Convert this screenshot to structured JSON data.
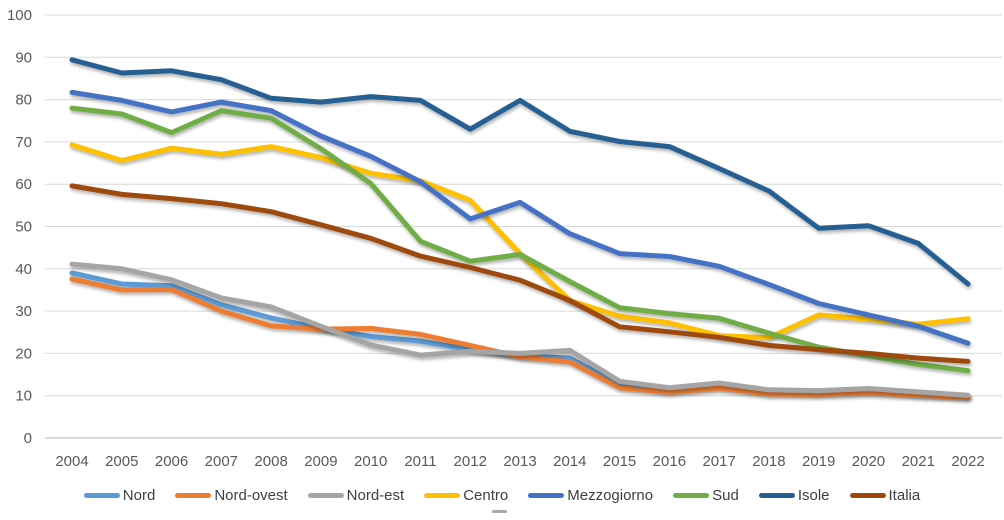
{
  "chart_data": {
    "type": "line",
    "title": "",
    "xlabel": "",
    "ylabel": "",
    "ylim": [
      0,
      100
    ],
    "yticks": [
      0,
      10,
      20,
      30,
      40,
      50,
      60,
      70,
      80,
      90,
      100
    ],
    "grid": true,
    "legend_position": "bottom",
    "categories": [
      "2004",
      "2005",
      "2006",
      "2007",
      "2008",
      "2009",
      "2010",
      "2011",
      "2012",
      "2013",
      "2014",
      "2015",
      "2016",
      "2017",
      "2018",
      "2019",
      "2020",
      "2021",
      "2022"
    ],
    "series": [
      {
        "name": "Nord",
        "color": "#5B9BD5",
        "values": [
          39.0,
          36.4,
          36.0,
          31.5,
          28.4,
          25.9,
          24.0,
          22.9,
          20.9,
          19.5,
          18.9,
          12.6,
          11.3,
          12.4,
          10.9,
          10.7,
          11.2,
          10.4,
          9.9
        ]
      },
      {
        "name": "Nord-ovest",
        "color": "#ED7D31",
        "values": [
          37.6,
          35.0,
          35.1,
          30.0,
          26.5,
          25.7,
          25.9,
          24.5,
          21.9,
          19.2,
          18.0,
          11.9,
          10.8,
          11.8,
          10.4,
          10.3,
          10.7,
          10.1,
          9.6
        ]
      },
      {
        "name": "Nord-est",
        "color": "#A5A5A5",
        "values": [
          41.1,
          40.0,
          37.4,
          33.1,
          31.0,
          26.4,
          22.0,
          19.6,
          20.5,
          20.0,
          20.7,
          13.4,
          11.9,
          13.0,
          11.4,
          11.2,
          11.7,
          10.9,
          10.1
        ]
      },
      {
        "name": "Centro",
        "color": "#FFC000",
        "values": [
          69.3,
          65.6,
          68.5,
          67.1,
          68.9,
          66.3,
          62.6,
          60.8,
          56.2,
          43.6,
          32.5,
          28.8,
          27.2,
          24.2,
          23.7,
          29.1,
          28.1,
          26.9,
          28.2
        ]
      },
      {
        "name": "Mezzogiorno",
        "color": "#4472C4",
        "values": [
          81.7,
          79.8,
          77.1,
          79.4,
          77.4,
          71.4,
          66.6,
          60.6,
          51.8,
          55.7,
          48.3,
          43.6,
          42.9,
          40.6,
          36.3,
          31.8,
          29.1,
          26.4,
          22.4
        ]
      },
      {
        "name": "Sud",
        "color": "#70AD47",
        "values": [
          78.0,
          76.6,
          72.2,
          77.4,
          75.6,
          68.4,
          60.2,
          46.5,
          41.8,
          43.4,
          37.0,
          30.8,
          29.4,
          28.3,
          24.8,
          21.5,
          19.4,
          17.4,
          15.9
        ]
      },
      {
        "name": "Isole",
        "color": "#255E91",
        "values": [
          89.4,
          86.3,
          86.8,
          84.7,
          80.3,
          79.4,
          80.7,
          79.8,
          73.0,
          79.8,
          72.5,
          70.1,
          68.9,
          63.7,
          58.4,
          49.6,
          50.2,
          46.0,
          36.4
        ]
      },
      {
        "name": "Italia",
        "color": "#9E480E",
        "values": [
          59.6,
          57.6,
          56.6,
          55.4,
          53.5,
          50.4,
          47.2,
          43.0,
          40.3,
          37.3,
          32.5,
          26.3,
          25.1,
          23.8,
          21.9,
          20.9,
          20.0,
          18.9,
          18.1
        ]
      }
    ],
    "axis_text_color": "#595959",
    "gridline_color": "#D9D9D9",
    "axis_line_color": "#BFBFBF"
  }
}
